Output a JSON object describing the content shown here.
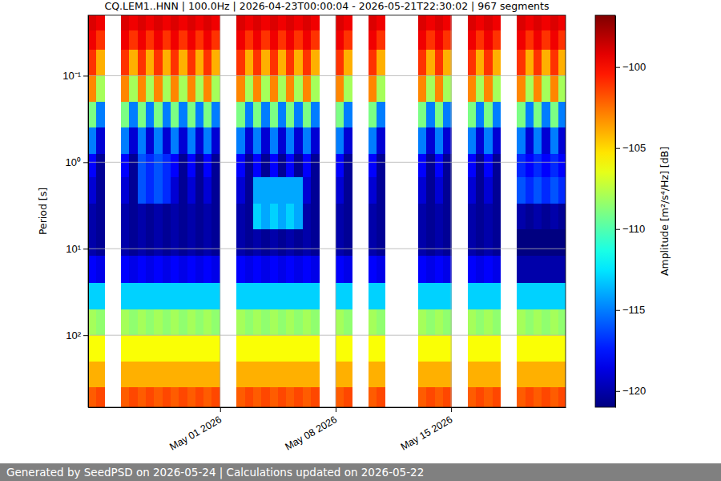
{
  "chart_data": {
    "type": "heatmap",
    "title": "CQ.LEM1..HNN | 100.0Hz | 2026-04-23T00:00:04 - 2026-05-21T22:30:02 | 967 segments",
    "y_label": "Period [s]",
    "annotations": [
      "Generated by SeedPSD on 2026-05-24 | Calculations updated on 2026-05-22"
    ],
    "log": "y",
    "grid": true,
    "xlim": [
      "2026-04-23T00:00:04",
      "2026-05-21T22:30:02"
    ],
    "xticks": [
      {
        "value": "2026-05-01",
        "label": "May 01 2026"
      },
      {
        "value": "2026-05-08",
        "label": "May 08 2026"
      },
      {
        "value": "2026-05-15",
        "label": "May 15 2026"
      }
    ],
    "ylim": [
      0.02,
      680
    ],
    "yticks": [
      {
        "value": 0.1,
        "label": "10⁻¹"
      },
      {
        "value": 1,
        "label": "10⁰"
      },
      {
        "value": 10,
        "label": "10¹"
      },
      {
        "value": 100,
        "label": "10²"
      }
    ],
    "x": [
      "2026-04-23T00:00",
      "2026-04-23T12:00",
      "2026-04-24T00:00",
      "2026-04-24T12:00",
      "2026-04-25T00:00",
      "2026-04-25T12:00",
      "2026-04-26T00:00",
      "2026-04-26T12:00",
      "2026-04-27T00:00",
      "2026-04-27T12:00",
      "2026-04-28T00:00",
      "2026-04-28T12:00",
      "2026-04-29T00:00",
      "2026-04-29T12:00",
      "2026-04-30T00:00",
      "2026-04-30T12:00",
      "2026-05-01T00:00",
      "2026-05-01T12:00",
      "2026-05-02T00:00",
      "2026-05-02T12:00",
      "2026-05-03T00:00",
      "2026-05-03T12:00",
      "2026-05-04T00:00",
      "2026-05-04T12:00",
      "2026-05-05T00:00",
      "2026-05-05T12:00",
      "2026-05-06T00:00",
      "2026-05-06T12:00",
      "2026-05-07T00:00",
      "2026-05-07T12:00",
      "2026-05-08T00:00",
      "2026-05-08T12:00",
      "2026-05-09T00:00",
      "2026-05-09T12:00",
      "2026-05-10T00:00",
      "2026-05-10T12:00",
      "2026-05-11T00:00",
      "2026-05-11T12:00",
      "2026-05-12T00:00",
      "2026-05-12T12:00",
      "2026-05-13T00:00",
      "2026-05-13T12:00",
      "2026-05-14T00:00",
      "2026-05-14T12:00",
      "2026-05-15T00:00",
      "2026-05-15T12:00",
      "2026-05-16T00:00",
      "2026-05-16T12:00",
      "2026-05-17T00:00",
      "2026-05-17T12:00",
      "2026-05-18T00:00",
      "2026-05-18T12:00",
      "2026-05-19T00:00",
      "2026-05-19T12:00",
      "2026-05-20T00:00",
      "2026-05-20T12:00",
      "2026-05-21T00:00",
      "2026-05-21T12:00",
      "2026-05-22T00:00"
    ],
    "y": [
      0.02,
      0.03,
      0.05,
      0.1,
      0.2,
      0.4,
      0.8,
      1.5,
      3,
      6,
      12,
      25,
      50,
      100,
      200,
      400,
      680
    ],
    "z": [
      [
        -99,
        -99.5,
        null,
        null,
        -99,
        -99.5,
        -99,
        -99.5,
        -99,
        -99.5,
        -99,
        -99.5,
        -99,
        -99.5,
        -99,
        -99.5,
        null,
        null,
        -99,
        -99.5,
        -99,
        -99.5,
        -99,
        -99.5,
        -99,
        -99.5,
        -99,
        -99.5,
        null,
        null,
        -99,
        -99.5,
        null,
        null,
        -99,
        -99.5,
        null,
        null,
        null,
        null,
        -99,
        -99.5,
        -99,
        -99.5,
        null,
        null,
        -99,
        -99.5,
        -99,
        -99.5,
        null,
        null,
        -99,
        -99.5,
        -99,
        -99.5,
        -99,
        -99.5
      ],
      [
        -99.5,
        -101,
        null,
        null,
        -99.5,
        -101,
        -99.5,
        -101,
        -99.5,
        -101,
        -99.5,
        -101,
        -99.5,
        -101,
        -99.5,
        -101,
        null,
        null,
        -99.5,
        -101,
        -99.5,
        -101,
        -99.5,
        -101,
        -99.5,
        -101,
        -99.5,
        -101,
        null,
        null,
        -99.5,
        -101,
        null,
        null,
        -99.5,
        -101,
        null,
        null,
        null,
        null,
        -99.5,
        -101,
        -99.5,
        -101,
        null,
        null,
        -99.5,
        -101,
        -99.5,
        -101,
        null,
        null,
        -99.5,
        -101,
        -99.5,
        -101,
        -99.5,
        -101
      ],
      [
        -101,
        -104,
        null,
        null,
        -101,
        -104,
        -101,
        -104,
        -101,
        -104,
        -101,
        -104,
        -101,
        -104,
        -101,
        -104,
        null,
        null,
        -101,
        -104,
        -101,
        -104,
        -101,
        -104,
        -101,
        -104,
        -101,
        -104,
        null,
        null,
        -101,
        -104,
        null,
        null,
        -101,
        -104,
        null,
        null,
        null,
        null,
        -101,
        -104,
        -101,
        -104,
        null,
        null,
        -101,
        -104,
        -101,
        -104,
        null,
        null,
        -101,
        -104,
        -101,
        -104,
        -101,
        -104
      ],
      [
        -103,
        -108,
        null,
        null,
        -103,
        -108,
        -103,
        -108,
        -103,
        -108,
        -103,
        -108,
        -103,
        -108,
        -103,
        -108,
        null,
        null,
        -103,
        -108,
        -103,
        -108,
        -103,
        -108,
        -103,
        -108,
        -103,
        -108,
        null,
        null,
        -103,
        -108,
        null,
        null,
        -103,
        -108,
        null,
        null,
        null,
        null,
        -103,
        -108,
        -103,
        -108,
        null,
        null,
        -103,
        -108,
        -103,
        -108,
        null,
        null,
        -103,
        -108,
        -103,
        -108,
        -103,
        -108
      ],
      [
        -109,
        -115,
        null,
        null,
        -109,
        -115,
        -109,
        -115,
        -109,
        -115,
        -109,
        -115,
        -109,
        -115,
        -109,
        -115,
        null,
        null,
        -109,
        -115,
        -109,
        -115,
        -109,
        -115,
        -109,
        -115,
        -109,
        -115,
        null,
        null,
        -109,
        -115,
        null,
        null,
        -109,
        -115,
        null,
        null,
        null,
        null,
        -109,
        -115,
        -109,
        -115,
        null,
        null,
        -109,
        -115,
        -109,
        -115,
        null,
        null,
        -109,
        -115,
        -109,
        -115,
        -109,
        -115
      ],
      [
        -115,
        -119,
        null,
        null,
        -115,
        -119,
        -115,
        -119,
        -115,
        -119,
        -115,
        -119,
        -115,
        -119,
        -115,
        -119,
        null,
        null,
        -115,
        -119,
        -115,
        -119,
        -115,
        -119,
        -115,
        -119,
        -115,
        -119,
        null,
        null,
        -115,
        -119,
        null,
        null,
        -115,
        -119,
        null,
        null,
        null,
        null,
        -115,
        -119,
        -115,
        -119,
        null,
        null,
        -115,
        -119,
        -115,
        -119,
        null,
        null,
        -115,
        -119,
        -115,
        -119,
        -115,
        -119
      ],
      [
        -118,
        -120.5,
        null,
        null,
        -118,
        -120.5,
        -116,
        -117,
        -116,
        -117,
        -118,
        -120.5,
        -118,
        -120.5,
        -118,
        -120.5,
        null,
        null,
        -118,
        -120.5,
        -118,
        -120.5,
        -118,
        -120.5,
        -118,
        -120.5,
        -118,
        -120.5,
        null,
        null,
        -118,
        -120.5,
        null,
        null,
        -118,
        -120.5,
        null,
        null,
        null,
        null,
        -118,
        -120.5,
        -118,
        -120.5,
        null,
        null,
        -118,
        -120.5,
        -118,
        -120.5,
        null,
        null,
        -117,
        -118,
        -117,
        -118,
        -117,
        -118
      ],
      [
        -119,
        -120.5,
        null,
        null,
        -119,
        -120.5,
        -116,
        -117,
        -116,
        -117,
        -119,
        -120.5,
        -119,
        -120.5,
        -119,
        -120.5,
        null,
        null,
        -119,
        -120.5,
        -114,
        -114,
        -114,
        -114,
        -114,
        -114,
        -119,
        -120.5,
        null,
        null,
        -119,
        -120.5,
        null,
        null,
        -119,
        -120.5,
        null,
        null,
        null,
        null,
        -119,
        -120.5,
        -119,
        -120.5,
        null,
        null,
        -119,
        -120.5,
        -119,
        -120.5,
        null,
        null,
        -116,
        -117,
        -116,
        -117,
        -116,
        -117
      ],
      [
        -120,
        -120.5,
        null,
        null,
        -120,
        -120.5,
        -120,
        -120.5,
        -120,
        -120.5,
        -120,
        -120.5,
        -120,
        -120.5,
        -120,
        -120.5,
        null,
        null,
        -120,
        -120.5,
        -113,
        -114,
        -113,
        -114,
        -113,
        -114,
        -120,
        -120.5,
        null,
        null,
        -120,
        -120.5,
        null,
        null,
        -120,
        -120.5,
        null,
        null,
        null,
        null,
        -120,
        -120.5,
        -120,
        -120.5,
        null,
        null,
        -120,
        -120.5,
        -120,
        -120.5,
        null,
        null,
        -120,
        -120.5,
        -120,
        -120.5,
        -120,
        -120.5
      ],
      [
        -120,
        -120.5,
        null,
        null,
        -120,
        -120.5,
        -120,
        -120.5,
        -120,
        -120.5,
        -120,
        -120.5,
        -120,
        -120.5,
        -120,
        -120.5,
        null,
        null,
        -120,
        -120.5,
        -120,
        -120.5,
        -120,
        -120.5,
        -120,
        -120.5,
        -120,
        -120.5,
        null,
        null,
        -120,
        -120.5,
        null,
        null,
        -120,
        -120.5,
        null,
        null,
        null,
        null,
        -120,
        -120.5,
        -120,
        -120.5,
        null,
        null,
        -120,
        -120.5,
        -120,
        -120.5,
        null,
        null,
        -121,
        -121,
        -121,
        -121,
        -121,
        -121
      ],
      [
        -118,
        -118.5,
        null,
        null,
        -118,
        -118.5,
        -118,
        -118.5,
        -118,
        -118.5,
        -118,
        -118.5,
        -118,
        -118.5,
        -118,
        -118.5,
        null,
        null,
        -118,
        -118.5,
        -118,
        -118.5,
        -118,
        -118.5,
        -118,
        -118.5,
        -118,
        -118.5,
        null,
        null,
        -118,
        -118.5,
        null,
        null,
        -118,
        -118.5,
        null,
        null,
        null,
        null,
        -118,
        -118.5,
        -118,
        -118.5,
        null,
        null,
        -118,
        -118.5,
        -118,
        -118.5,
        null,
        null,
        -120,
        -120,
        -120,
        -120,
        -120,
        -120
      ],
      [
        -113,
        -113,
        null,
        null,
        -113,
        -113,
        -113,
        -113,
        -113,
        -113,
        -113,
        -113,
        -113,
        -113,
        -113,
        -113,
        null,
        null,
        -113,
        -113,
        -113,
        -113,
        -113,
        -113,
        -113,
        -113,
        -113,
        -113,
        null,
        null,
        -113,
        -113,
        null,
        null,
        -113,
        -113,
        null,
        null,
        null,
        null,
        -113,
        -113,
        -113,
        -113,
        null,
        null,
        -113,
        -113,
        -113,
        -113,
        null,
        null,
        -113,
        -113,
        -113,
        -113,
        -113,
        -113
      ],
      [
        -108,
        -108.5,
        null,
        null,
        -108,
        -108.5,
        -108,
        -108.5,
        -108,
        -108.5,
        -108,
        -108.5,
        -108,
        -108.5,
        -108,
        -108.5,
        null,
        null,
        -108,
        -108.5,
        -108,
        -108.5,
        -108,
        -108.5,
        -108,
        -108.5,
        -108,
        -108.5,
        null,
        null,
        -108,
        -108.5,
        null,
        null,
        -108,
        -108.5,
        null,
        null,
        null,
        null,
        -108,
        -108.5,
        -108,
        -108.5,
        null,
        null,
        -108,
        -108.5,
        -108,
        -108.5,
        null,
        null,
        -108,
        -108.5,
        -108,
        -108.5,
        -108,
        -108.5
      ],
      [
        -106,
        -106,
        null,
        null,
        -106,
        -106,
        -106,
        -106,
        -106,
        -106,
        -106,
        -106,
        -106,
        -106,
        -106,
        -106,
        null,
        null,
        -106,
        -106,
        -106,
        -106,
        -106,
        -106,
        -106,
        -106,
        -106,
        -106,
        null,
        null,
        -106,
        -106,
        null,
        null,
        -106,
        -106,
        null,
        null,
        null,
        null,
        -106,
        -106,
        -106,
        -106,
        null,
        null,
        -106,
        -106,
        -106,
        -106,
        null,
        null,
        -106,
        -106,
        -106,
        -106,
        -106,
        -106
      ],
      [
        -104,
        -104,
        null,
        null,
        -104,
        -104,
        -104,
        -104,
        -104,
        -104,
        -104,
        -104,
        -104,
        -104,
        -104,
        -104,
        null,
        null,
        -104,
        -104,
        -104,
        -104,
        -104,
        -104,
        -104,
        -104,
        -104,
        -104,
        null,
        null,
        -104,
        -104,
        null,
        null,
        -104,
        -104,
        null,
        null,
        null,
        null,
        -104,
        -104,
        -104,
        -104,
        null,
        null,
        -104,
        -104,
        -104,
        -104,
        null,
        null,
        -104,
        -104,
        -104,
        -104,
        -104,
        -104
      ],
      [
        -102,
        -101.5,
        null,
        null,
        -102,
        -101.5,
        -102,
        -101.5,
        -102,
        -101.5,
        -102,
        -101.5,
        -102,
        -101.5,
        -102,
        -101.5,
        null,
        null,
        -102,
        -101.5,
        -102,
        -101.5,
        -102,
        -101.5,
        -102,
        -101.5,
        -102,
        -101.5,
        null,
        null,
        -102,
        -101.5,
        null,
        null,
        -102,
        -101.5,
        null,
        null,
        null,
        null,
        -102,
        -101.5,
        -102,
        -101.5,
        null,
        null,
        -102,
        -101.5,
        -102,
        -101.5,
        null,
        null,
        -102,
        -101.5,
        -102,
        -101.5,
        -102,
        -101.5
      ]
    ],
    "colorbar": {
      "label": "Amplitude [m²/s⁴/Hz] [dB]",
      "range": [
        -121,
        -96.8
      ],
      "ticks": [
        {
          "value": -120,
          "label": "−120"
        },
        {
          "value": -115,
          "label": "−115"
        },
        {
          "value": -110,
          "label": "−110"
        },
        {
          "value": -105,
          "label": "−105"
        },
        {
          "value": -100,
          "label": "−100"
        }
      ]
    }
  }
}
